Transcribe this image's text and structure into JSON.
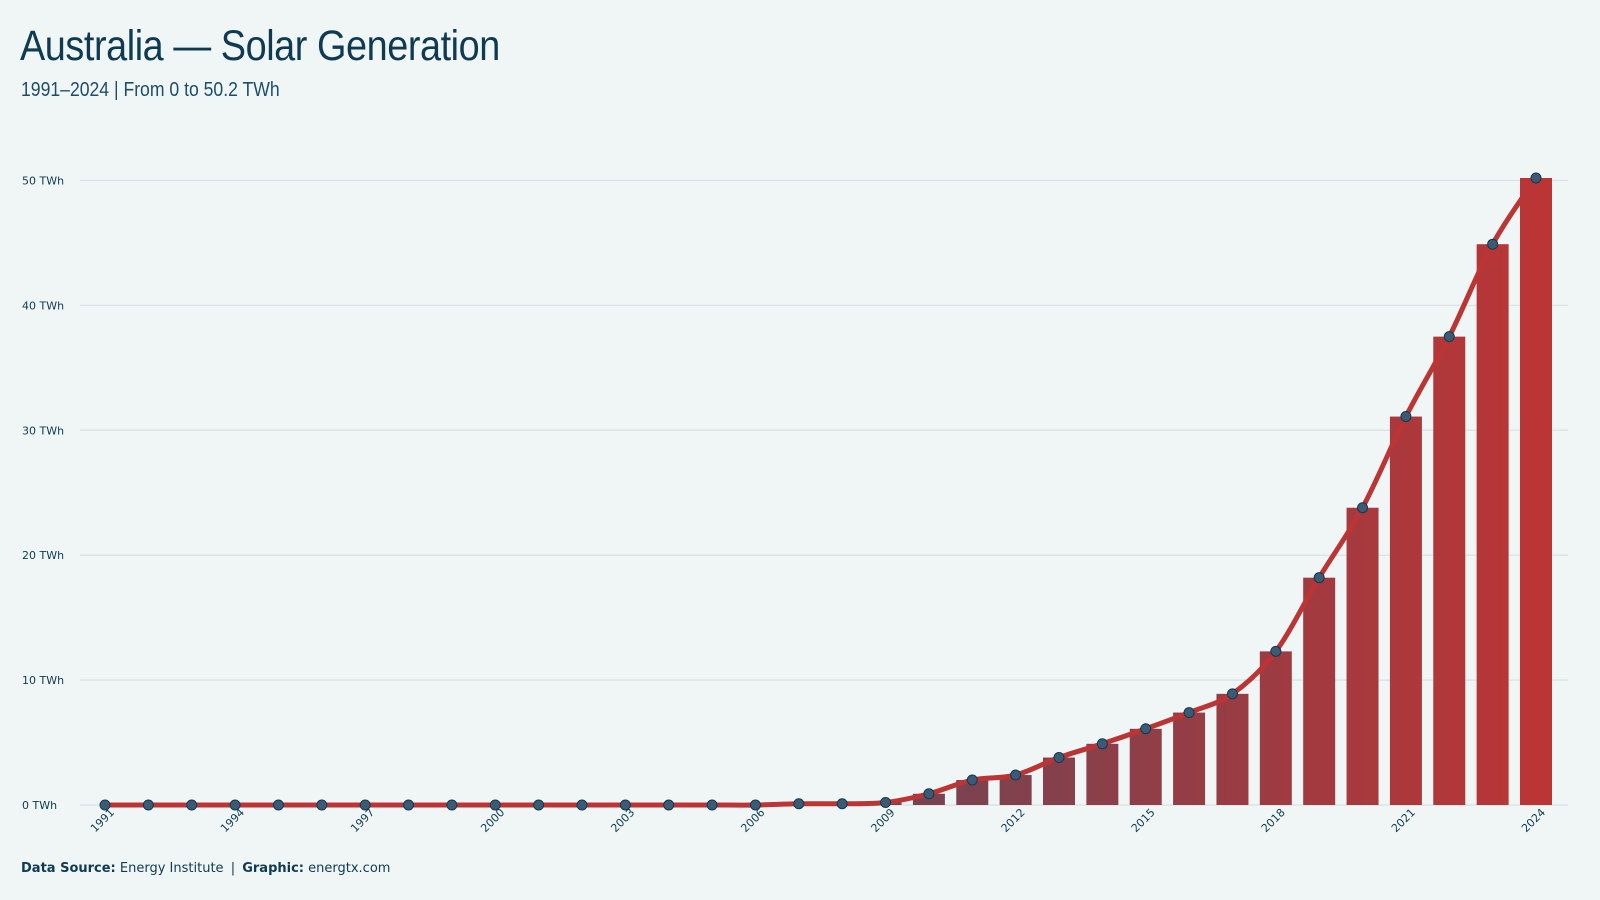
{
  "header": {
    "title": "Australia — Solar Generation",
    "subtitle": "1991–2024 | From 0 to 50.2 TWh"
  },
  "footer": {
    "source_label": "Data Source:",
    "source_value": "Energy Institute",
    "separator": "|",
    "graphic_label": "Graphic:",
    "graphic_value": "energtx.com"
  },
  "colors": {
    "bar_start": "#1d5577",
    "bar_end": "#bc3535",
    "line": "#bc3535",
    "marker_fill": "#3d5a74",
    "grid": "#dbe4e6",
    "text": "#0e3a52"
  },
  "chart_data": {
    "type": "bar",
    "x": [
      1991,
      1992,
      1993,
      1994,
      1995,
      1996,
      1997,
      1998,
      1999,
      2000,
      2001,
      2002,
      2003,
      2004,
      2005,
      2006,
      2007,
      2008,
      2009,
      2010,
      2011,
      2012,
      2013,
      2014,
      2015,
      2016,
      2017,
      2018,
      2019,
      2020,
      2021,
      2022,
      2023,
      2024
    ],
    "series": [
      {
        "values": [
          0.0,
          0.0,
          0.0,
          0.0,
          0.0,
          0.0,
          0.0,
          0.0,
          0.0,
          0.0,
          0.0,
          0.0,
          0.0,
          0.0,
          0.0,
          0.0,
          0.1,
          0.1,
          0.2,
          0.9,
          2.0,
          2.4,
          3.8,
          4.9,
          6.1,
          7.4,
          8.9,
          12.3,
          18.2,
          23.8,
          31.1,
          37.5,
          44.9,
          50.2
        ]
      }
    ],
    "overlay": "line-with-markers",
    "x_tick_labels": [
      "1991",
      "1994",
      "1997",
      "2000",
      "2003",
      "2006",
      "2009",
      "2012",
      "2015",
      "2018",
      "2021",
      "2024"
    ],
    "y_tick_labels": [
      "0 TWh",
      "10 TWh",
      "20 TWh",
      "30 TWh",
      "40 TWh",
      "50 TWh"
    ],
    "y_ticks": [
      0,
      10,
      20,
      30,
      40,
      50
    ],
    "ylim": [
      0,
      50.2
    ],
    "grid": "horizontal"
  }
}
